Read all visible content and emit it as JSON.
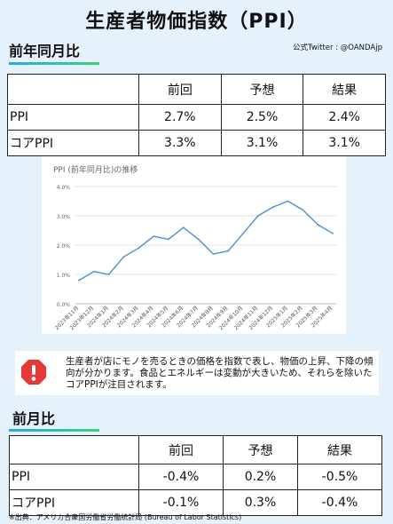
{
  "page_title": "生産者物価指数（PPI）",
  "account": "公式Twitter : @OANDAjp",
  "yoy_section": {
    "heading": "前年同月比",
    "headers": [
      "",
      "前回",
      "予想",
      "結果"
    ],
    "rows": [
      {
        "label": "PPI",
        "prev": "2.7%",
        "forecast": "2.5%",
        "result": "2.4%"
      },
      {
        "label": "コアPPI",
        "prev": "3.3%",
        "forecast": "3.1%",
        "result": "3.1%"
      }
    ]
  },
  "chart_data": {
    "type": "line",
    "title": "PPI (前年同月比)の推移",
    "categories": [
      "2023年11月",
      "2023年12月",
      "2024年1月",
      "2024年2月",
      "2024年3月",
      "2024年4月",
      "2024年5月",
      "2024年6月",
      "2024年7月",
      "2024年8月",
      "2024年9月",
      "2024年10月",
      "2024年11月",
      "2024年12月",
      "2025年1月",
      "2025年2月",
      "2025年3月",
      "2025年4月"
    ],
    "values": [
      0.8,
      1.1,
      1.0,
      1.6,
      1.9,
      2.3,
      2.2,
      2.6,
      2.2,
      1.7,
      1.8,
      2.4,
      3.0,
      3.3,
      3.5,
      3.2,
      2.7,
      2.4
    ],
    "y_ticks": [
      "0.0%",
      "1.0%",
      "2.0%",
      "3.0%",
      "4.0%"
    ],
    "ylim": [
      0,
      4
    ],
    "grid": true,
    "line_color": "#4a8fd6"
  },
  "note": {
    "icon": "alert-icon",
    "text": "生産者が店にモノを売るときの価格を指数で表し、物価の上昇、下降の傾向が分かります。食品とエネルギーは変動が大きいため、それらを除いたコアPPIが注目されます。"
  },
  "mom_section": {
    "heading": "前月比",
    "headers": [
      "",
      "前回",
      "予想",
      "結果"
    ],
    "rows": [
      {
        "label": "PPI",
        "prev": "-0.4%",
        "forecast": "0.2%",
        "result": "-0.5%"
      },
      {
        "label": "コアPPI",
        "prev": "-0.1%",
        "forecast": "0.3%",
        "result": "-0.4%"
      }
    ]
  },
  "footer": "※出典：アメリカ合衆国労働省労働統計局 (Bureau of Labor Statistics)",
  "colors": {
    "background": "#e6f2fb",
    "underline_start": "#2aa7e6",
    "underline_end": "#38d47a",
    "alert": "#e53935"
  }
}
